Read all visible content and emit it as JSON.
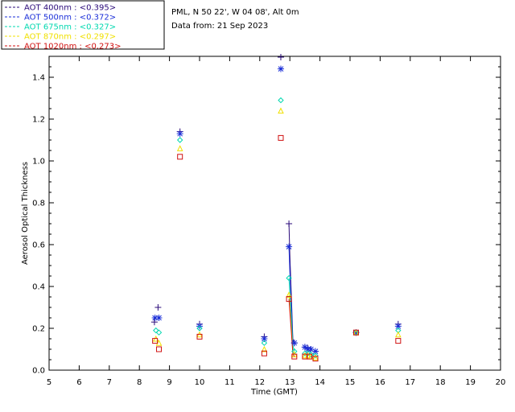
{
  "header": {
    "site": "PML, N 50 22', W 04 08', Alt 0m",
    "date": "Data from: 21 Sep 2023"
  },
  "chart_data": {
    "type": "scatter",
    "xlabel": "Time (GMT)",
    "ylabel": "Aerosol Optical Thickness",
    "xlim": [
      5,
      20
    ],
    "ylim": [
      0,
      1.5
    ],
    "xticks": [
      "5",
      "6",
      "7",
      "8",
      "9",
      "10",
      "11",
      "12",
      "13",
      "14",
      "15",
      "16",
      "17",
      "18",
      "19",
      "20"
    ],
    "yticks": [
      "0.0",
      "0.2",
      "0.4",
      "0.6",
      "0.8",
      "1.0",
      "1.2",
      "1.4"
    ],
    "legend_position": "top-left",
    "series": [
      {
        "name": "AOT  400nm : <0.395>",
        "color": "#2a0a7a",
        "marker": "plus",
        "points": [
          [
            8.5,
            0.23
          ],
          [
            8.62,
            0.3
          ],
          [
            9.35,
            1.14
          ],
          [
            10.0,
            0.22
          ],
          [
            12.15,
            0.16
          ],
          [
            12.7,
            1.52
          ],
          [
            12.97,
            0.7
          ],
          [
            13.15,
            0.13
          ],
          [
            13.5,
            0.11
          ],
          [
            13.6,
            0.105
          ],
          [
            13.7,
            0.1
          ],
          [
            13.85,
            0.09
          ],
          [
            15.2,
            0.18
          ],
          [
            16.6,
            0.22
          ]
        ],
        "line_segment": [
          [
            12.97,
            0.7
          ],
          [
            13.0,
            0.55
          ],
          [
            13.05,
            0.35
          ],
          [
            13.1,
            0.15
          ],
          [
            13.15,
            0.13
          ]
        ]
      },
      {
        "name": "AOT  500nm : <0.372>",
        "color": "#1a2ed8",
        "marker": "asterisk",
        "points": [
          [
            8.52,
            0.25
          ],
          [
            8.65,
            0.25
          ],
          [
            9.35,
            1.13
          ],
          [
            10.0,
            0.21
          ],
          [
            12.15,
            0.15
          ],
          [
            12.7,
            1.44
          ],
          [
            12.97,
            0.59
          ],
          [
            13.15,
            0.13
          ],
          [
            13.5,
            0.11
          ],
          [
            13.6,
            0.1
          ],
          [
            13.7,
            0.1
          ],
          [
            13.85,
            0.09
          ],
          [
            15.2,
            0.18
          ],
          [
            16.6,
            0.21
          ]
        ],
        "line_segment": [
          [
            12.97,
            0.59
          ],
          [
            13.0,
            0.47
          ],
          [
            13.05,
            0.3
          ],
          [
            13.1,
            0.14
          ],
          [
            13.15,
            0.13
          ]
        ]
      },
      {
        "name": "AOT  675nm : <0.327>",
        "color": "#00d8b0",
        "marker": "diamond",
        "points": [
          [
            8.55,
            0.19
          ],
          [
            8.65,
            0.18
          ],
          [
            9.35,
            1.1
          ],
          [
            10.0,
            0.2
          ],
          [
            12.15,
            0.13
          ],
          [
            12.7,
            1.29
          ],
          [
            12.97,
            0.44
          ],
          [
            13.15,
            0.09
          ],
          [
            13.5,
            0.08
          ],
          [
            13.6,
            0.08
          ],
          [
            13.7,
            0.075
          ],
          [
            13.85,
            0.07
          ],
          [
            15.2,
            0.18
          ],
          [
            16.6,
            0.19
          ]
        ],
        "line_segment": [
          [
            12.97,
            0.44
          ],
          [
            13.03,
            0.3
          ],
          [
            13.1,
            0.12
          ],
          [
            13.15,
            0.09
          ]
        ]
      },
      {
        "name": "AOT  870nm : <0.297>",
        "color": "#f0e000",
        "marker": "triangle",
        "points": [
          [
            8.55,
            0.15
          ],
          [
            8.65,
            0.13
          ],
          [
            9.35,
            1.06
          ],
          [
            10.0,
            0.17
          ],
          [
            12.15,
            0.1
          ],
          [
            12.7,
            1.24
          ],
          [
            12.97,
            0.36
          ],
          [
            13.15,
            0.075
          ],
          [
            13.5,
            0.07
          ],
          [
            13.6,
            0.07
          ],
          [
            13.7,
            0.065
          ],
          [
            13.85,
            0.06
          ],
          [
            15.2,
            0.18
          ],
          [
            16.6,
            0.17
          ]
        ],
        "line_segment": [
          [
            12.97,
            0.36
          ],
          [
            13.05,
            0.2
          ],
          [
            13.1,
            0.09
          ],
          [
            13.15,
            0.075
          ]
        ]
      },
      {
        "name": "AOT 1020nm : <0.273>",
        "color": "#d01010",
        "marker": "square",
        "points": [
          [
            8.52,
            0.14
          ],
          [
            8.65,
            0.1
          ],
          [
            9.35,
            1.02
          ],
          [
            10.0,
            0.16
          ],
          [
            12.15,
            0.08
          ],
          [
            12.7,
            1.11
          ],
          [
            12.97,
            0.34
          ],
          [
            13.15,
            0.065
          ],
          [
            13.5,
            0.065
          ],
          [
            13.65,
            0.065
          ],
          [
            13.85,
            0.055
          ],
          [
            15.2,
            0.18
          ],
          [
            16.6,
            0.14
          ]
        ],
        "line_segment": [
          [
            12.97,
            0.34
          ],
          [
            13.05,
            0.18
          ],
          [
            13.1,
            0.08
          ],
          [
            13.15,
            0.065
          ]
        ]
      }
    ]
  }
}
